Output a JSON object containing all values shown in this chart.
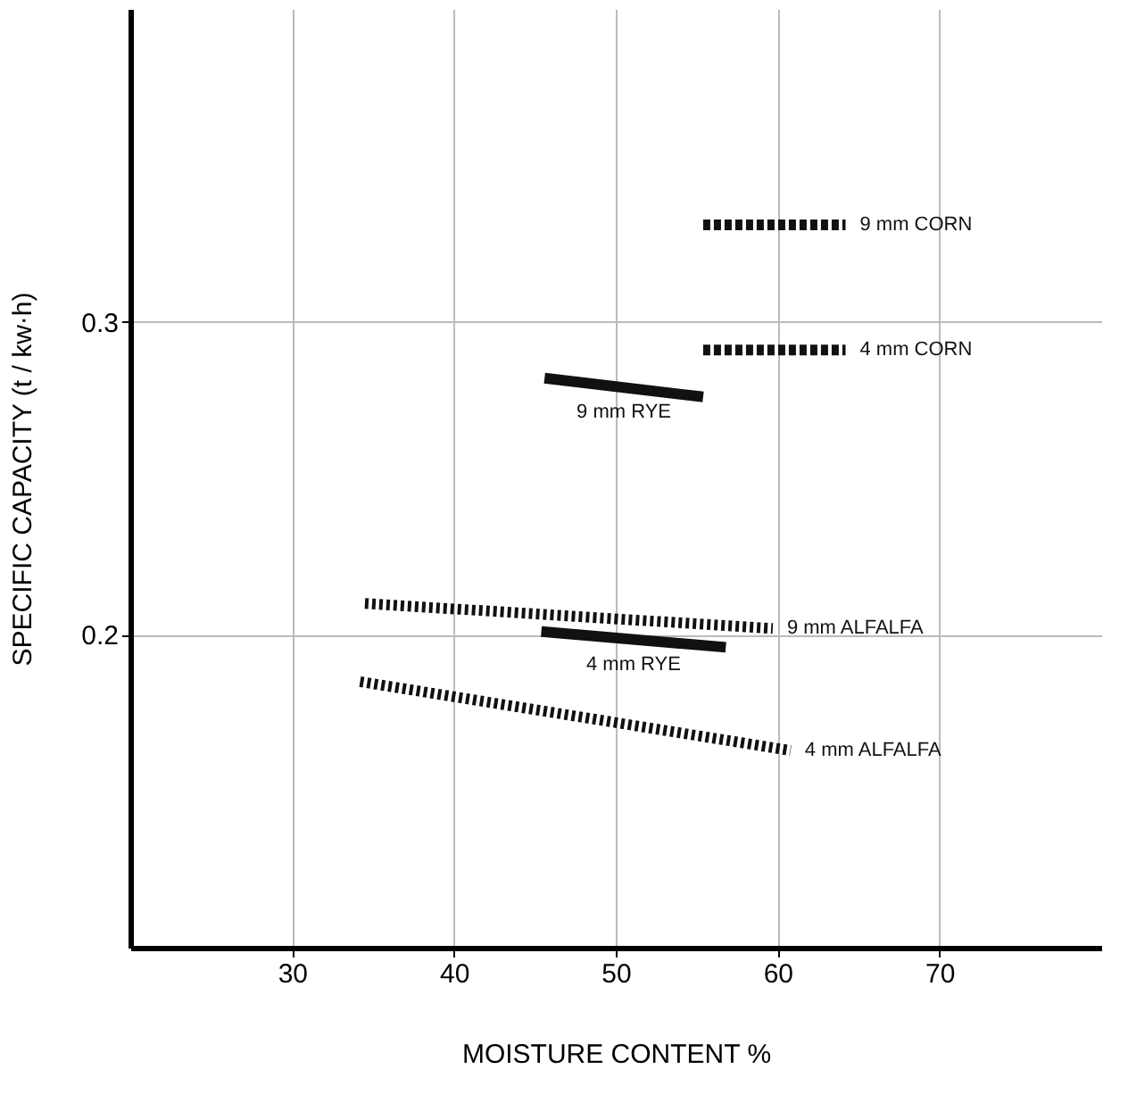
{
  "chart_data": {
    "type": "line",
    "xlabel": "MOISTURE CONTENT  %",
    "ylabel": "SPECIFIC  CAPACITY  (t / kw·h)",
    "xlim": [
      20,
      80
    ],
    "xticks": [
      30,
      40,
      50,
      60,
      70
    ],
    "ylim": [
      0.1,
      0.4
    ],
    "yticks": [
      0.2,
      0.3
    ],
    "grid": true,
    "series": [
      {
        "name": "9 mm  CORN",
        "color": "#111111",
        "line_style": "dashed",
        "x": [
          55.4,
          64.2
        ],
        "values": [
          0.331,
          0.331
        ]
      },
      {
        "name": "4 mm  CORN",
        "color": "#111111",
        "line_style": "dashed",
        "x": [
          55.4,
          64.2
        ],
        "values": [
          0.291,
          0.291
        ]
      },
      {
        "name": "9 mm  RYE",
        "color": "#111111",
        "line_style": "solid",
        "x": [
          45.6,
          55.4
        ],
        "values": [
          0.282,
          0.276
        ]
      },
      {
        "name": "9 mm  ALFALFA",
        "color": "#111111",
        "line_style": "dotted",
        "x": [
          34.5,
          59.7
        ],
        "values": [
          0.21,
          0.202
        ]
      },
      {
        "name": "4 mm  RYE",
        "color": "#111111",
        "line_style": "solid",
        "x": [
          45.4,
          56.8
        ],
        "values": [
          0.201,
          0.196
        ]
      },
      {
        "name": "4 mm  ALFALFA",
        "color": "#111111",
        "line_style": "dotted",
        "x": [
          34.2,
          60.8
        ],
        "values": [
          0.185,
          0.163
        ]
      }
    ]
  }
}
